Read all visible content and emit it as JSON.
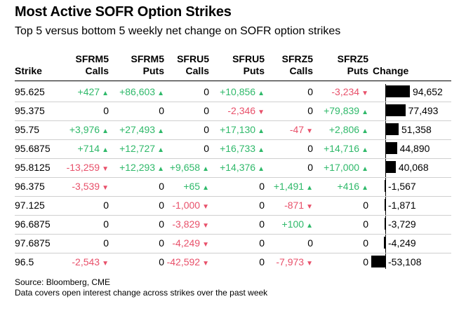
{
  "title": "Most Active SOFR Option Strikes",
  "subtitle": "Top 5 versus bottom 5 weekly net change on SOFR option strikes",
  "headers": {
    "strike": "Strike",
    "c1": [
      "SFRM5",
      "Calls"
    ],
    "c2": [
      "SFRM5",
      "Puts"
    ],
    "c3": [
      "SFRU5",
      "Calls"
    ],
    "c4": [
      "SFRU5",
      "Puts"
    ],
    "c5": [
      "SFRZ5",
      "Calls"
    ],
    "c6": [
      "SFRZ5",
      "Puts"
    ],
    "change": "Change"
  },
  "colors": {
    "positive": "#2fb96a",
    "negative": "#e8506a",
    "bar": "#000000"
  },
  "footer": {
    "source": "Source: Bloomberg, CME",
    "note": "Data covers open interest change across strikes over the past week"
  },
  "chart_data": {
    "type": "table",
    "columns": [
      "Strike",
      "SFRM5 Calls",
      "SFRM5 Puts",
      "SFRU5 Calls",
      "SFRU5 Puts",
      "SFRZ5 Calls",
      "SFRZ5 Puts",
      "Change"
    ],
    "rows": [
      {
        "strike": "95.625",
        "values": [
          "+427",
          "+86,603",
          "0",
          "+10,856",
          "0",
          "-3,234"
        ],
        "change": 94652,
        "change_label": "94,652"
      },
      {
        "strike": "95.375",
        "values": [
          "0",
          "0",
          "0",
          "-2,346",
          "0",
          "+79,839"
        ],
        "change": 77493,
        "change_label": "77,493"
      },
      {
        "strike": "95.75",
        "values": [
          "+3,976",
          "+27,493",
          "0",
          "+17,130",
          "-47",
          "+2,806"
        ],
        "change": 51358,
        "change_label": "51,358"
      },
      {
        "strike": "95.6875",
        "values": [
          "+714",
          "+12,727",
          "0",
          "+16,733",
          "0",
          "+14,716"
        ],
        "change": 44890,
        "change_label": "44,890"
      },
      {
        "strike": "95.8125",
        "values": [
          "-13,259",
          "+12,293",
          "+9,658",
          "+14,376",
          "0",
          "+17,000"
        ],
        "change": 40068,
        "change_label": "40,068"
      },
      {
        "strike": "96.375",
        "values": [
          "-3,539",
          "0",
          "+65",
          "0",
          "+1,491",
          "+416"
        ],
        "change": -1567,
        "change_label": "-1,567"
      },
      {
        "strike": "97.125",
        "values": [
          "0",
          "0",
          "-1,000",
          "0",
          "-871",
          "0"
        ],
        "change": -1871,
        "change_label": "-1,871"
      },
      {
        "strike": "96.6875",
        "values": [
          "0",
          "0",
          "-3,829",
          "0",
          "+100",
          "0"
        ],
        "change": -3729,
        "change_label": "-3,729"
      },
      {
        "strike": "97.6875",
        "values": [
          "0",
          "0",
          "-4,249",
          "0",
          "0",
          "0"
        ],
        "change": -4249,
        "change_label": "-4,249"
      },
      {
        "strike": "96.5",
        "values": [
          "-2,543",
          "0",
          "-42,592",
          "0",
          "-7,973",
          "0"
        ],
        "change": -53108,
        "change_label": "-53,108"
      }
    ]
  }
}
